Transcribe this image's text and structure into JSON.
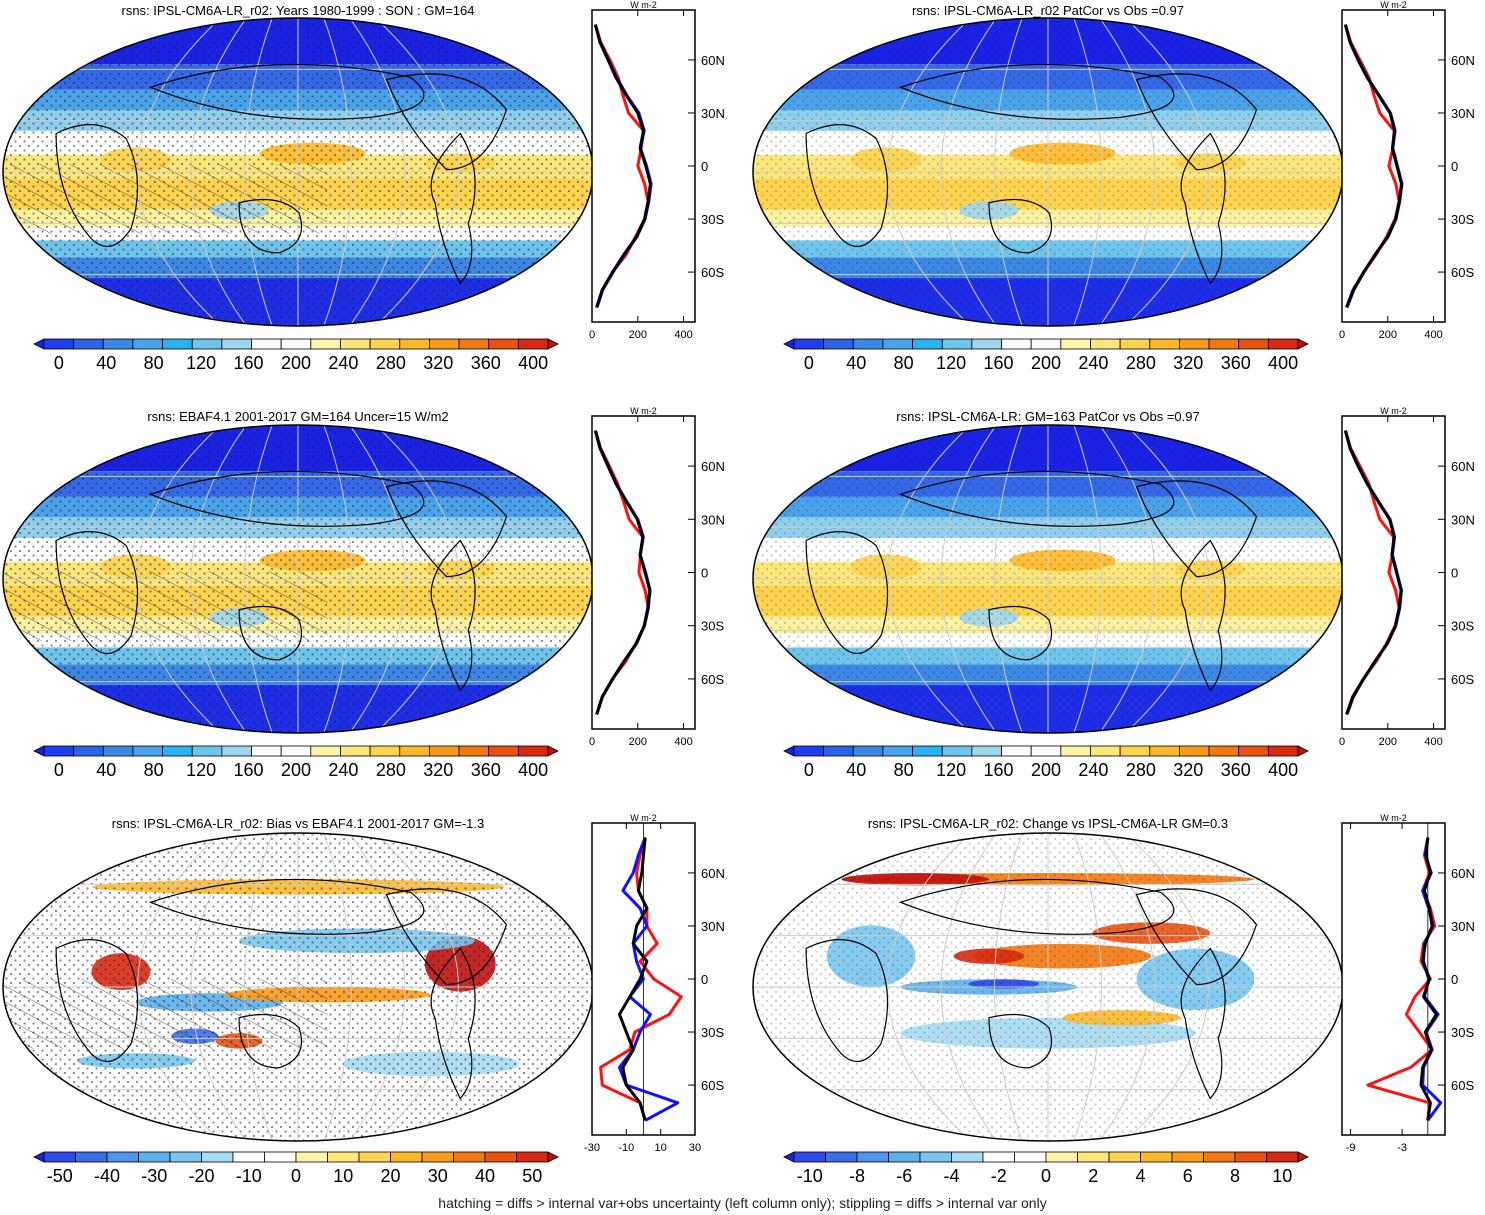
{
  "footer": "hatching = diffs > internal var+obs uncertainty (left column only); stippling = diffs > internal var only",
  "colors": {
    "abs_scale": [
      "#1e1ee8",
      "#1f3ef0",
      "#2c63e6",
      "#3c86e4",
      "#4aa3ea",
      "#2ab3ef",
      "#6fc4ec",
      "#9ed6f0",
      "#ffffff",
      "#ffffff",
      "#fff5a8",
      "#fde77a",
      "#fdd350",
      "#fdb82a",
      "#f99a1a",
      "#f27810",
      "#ea5211",
      "#d82a12",
      "#c01010"
    ],
    "diff_scale": [
      "#2020e0",
      "#2f49ea",
      "#3c6ee6",
      "#4c93ea",
      "#5cb0ec",
      "#79c5ee",
      "#a6dcf4",
      "#ffffff",
      "#ffffff",
      "#fff5a8",
      "#fde77a",
      "#fdd350",
      "#fdb82a",
      "#f99a1a",
      "#f27810",
      "#ea5211",
      "#d82a12",
      "#c01010"
    ],
    "line_model": "#000000",
    "line_obs": "#ff1111",
    "line_ref": "#1010ff"
  },
  "chart_data": [
    {
      "type": "heatmap",
      "title": "rsns: IPSL-CM6A-LR_r02: Years 1980-1999 : SON : GM=164",
      "colorbar_ticks": [
        "0",
        "40",
        "80",
        "120",
        "160",
        "200",
        "240",
        "280",
        "320",
        "360",
        "400"
      ],
      "profile": {
        "unit": "W m-2",
        "x_ticks": [
          "0",
          "200",
          "400"
        ],
        "xlim": [
          0,
          450
        ],
        "lat_ticks": [
          "60N",
          "30N",
          "0",
          "30S",
          "60S"
        ],
        "series": [
          {
            "color": "black",
            "lat": [
              80,
              70,
              60,
              50,
              40,
              30,
              20,
              10,
              0,
              -10,
              -20,
              -30,
              -40,
              -50,
              -60,
              -70,
              -80
            ],
            "values": [
              15,
              35,
              70,
              105,
              150,
              200,
              225,
              210,
              235,
              255,
              245,
              230,
              195,
              140,
              90,
              45,
              20
            ]
          },
          {
            "color": "red",
            "lat": [
              80,
              70,
              60,
              50,
              40,
              30,
              20,
              10,
              0,
              -10,
              -20,
              -30,
              -40,
              -50,
              -60,
              -70,
              -80
            ],
            "values": [
              15,
              38,
              78,
              115,
              135,
              160,
              225,
              215,
              200,
              230,
              245,
              230,
              190,
              150,
              90,
              45,
              20
            ]
          },
          {
            "color": "blue",
            "lat": [
              80,
              70,
              60,
              50,
              40,
              30,
              20,
              10,
              0,
              -10,
              -20,
              -30,
              -40,
              -50,
              -60,
              -70,
              -80
            ],
            "values": [
              15,
              35,
              72,
              108,
              152,
              205,
              228,
              212,
              238,
              258,
              248,
              232,
              196,
              142,
              92,
              47,
              22
            ]
          }
        ]
      }
    },
    {
      "type": "heatmap",
      "title": "rsns: IPSL-CM6A-LR_r02 PatCor vs Obs =0.97",
      "colorbar_ticks": [
        "0",
        "40",
        "80",
        "120",
        "160",
        "200",
        "240",
        "280",
        "320",
        "360",
        "400"
      ],
      "profile": {
        "unit": "W m-2",
        "x_ticks": [
          "0",
          "200",
          "400"
        ],
        "xlim": [
          0,
          450
        ],
        "lat_ticks": [
          "60N",
          "30N",
          "0",
          "30S",
          "60S"
        ],
        "series": [
          {
            "color": "black",
            "lat": [
              80,
              70,
              60,
              50,
              40,
              30,
              20,
              10,
              0,
              -10,
              -20,
              -30,
              -40,
              -50,
              -60,
              -70,
              -80
            ],
            "values": [
              15,
              35,
              70,
              110,
              160,
              210,
              230,
              220,
              240,
              260,
              250,
              235,
              200,
              145,
              95,
              50,
              20
            ]
          },
          {
            "color": "red",
            "lat": [
              80,
              70,
              60,
              50,
              40,
              30,
              20,
              10,
              0,
              -10,
              -20,
              -30,
              -40,
              -50,
              -60,
              -70,
              -80
            ],
            "values": [
              15,
              38,
              78,
              118,
              140,
              165,
              228,
              222,
              205,
              235,
              250,
              232,
              195,
              150,
              95,
              48,
              20
            ]
          },
          {
            "color": "blue",
            "lat": [
              80,
              70,
              60,
              50,
              40,
              30,
              20,
              10,
              0,
              -10,
              -20,
              -30,
              -40,
              -50,
              -60,
              -70,
              -80
            ],
            "values": [
              15,
              36,
              72,
              112,
              162,
              212,
              232,
              222,
              242,
              262,
              252,
              236,
              201,
              146,
              96,
              52,
              22
            ]
          }
        ]
      }
    },
    {
      "type": "heatmap",
      "title": "rsns: EBAF4.1 2001-2017 GM=164 Uncer=15 W/m2",
      "colorbar_ticks": [
        "0",
        "40",
        "80",
        "120",
        "160",
        "200",
        "240",
        "280",
        "320",
        "360",
        "400"
      ],
      "profile": {
        "unit": "W m-2",
        "x_ticks": [
          "0",
          "200",
          "400"
        ],
        "xlim": [
          0,
          450
        ],
        "lat_ticks": [
          "60N",
          "30N",
          "0",
          "30S",
          "60S"
        ],
        "series": [
          {
            "color": "black",
            "lat": [
              80,
              70,
              60,
              50,
              40,
              30,
              20,
              10,
              0,
              -10,
              -20,
              -30,
              -40,
              -50,
              -60,
              -70,
              -80
            ],
            "values": [
              15,
              35,
              70,
              105,
              150,
              198,
              222,
              210,
              232,
              252,
              244,
              228,
              194,
              140,
              90,
              45,
              20
            ]
          },
          {
            "color": "red",
            "lat": [
              80,
              70,
              60,
              50,
              40,
              30,
              20,
              10,
              0,
              -10,
              -20,
              -30,
              -40,
              -50,
              -60,
              -70,
              -80
            ],
            "values": [
              15,
              38,
              76,
              112,
              138,
              162,
              222,
              212,
              205,
              232,
              246,
              230,
              192,
              148,
              90,
              45,
              20
            ]
          },
          {
            "color": "blue",
            "lat": [
              80,
              70,
              60,
              50,
              40,
              30,
              20,
              10,
              0,
              -10,
              -20,
              -30,
              -40,
              -50,
              -60,
              -70,
              -80
            ],
            "values": [
              15,
              36,
              72,
              106,
              152,
              200,
              224,
              211,
              234,
              254,
              246,
              229,
              195,
              141,
              91,
              46,
              21
            ]
          }
        ]
      }
    },
    {
      "type": "heatmap",
      "title": "rsns: IPSL-CM6A-LR: GM=163 PatCor vs Obs =0.97",
      "colorbar_ticks": [
        "0",
        "40",
        "80",
        "120",
        "160",
        "200",
        "240",
        "280",
        "320",
        "360",
        "400"
      ],
      "profile": {
        "unit": "W m-2",
        "x_ticks": [
          "0",
          "200",
          "400"
        ],
        "xlim": [
          0,
          450
        ],
        "lat_ticks": [
          "60N",
          "30N",
          "0",
          "30S",
          "60S"
        ],
        "series": [
          {
            "color": "black",
            "lat": [
              80,
              70,
              60,
              50,
              40,
              30,
              20,
              10,
              0,
              -10,
              -20,
              -30,
              -40,
              -50,
              -60,
              -70,
              -80
            ],
            "values": [
              15,
              35,
              70,
              110,
              158,
              208,
              228,
              218,
              238,
              258,
              250,
              234,
              198,
              144,
              94,
              48,
              20
            ]
          },
          {
            "color": "red",
            "lat": [
              80,
              70,
              60,
              50,
              40,
              30,
              20,
              10,
              0,
              -10,
              -20,
              -30,
              -40,
              -50,
              -60,
              -70,
              -80
            ],
            "values": [
              15,
              38,
              78,
              118,
              140,
              165,
              226,
              220,
              205,
              234,
              250,
              232,
              195,
              150,
              94,
              46,
              20
            ]
          },
          {
            "color": "blue",
            "lat": [
              80,
              70,
              60,
              50,
              40,
              30,
              20,
              10,
              0,
              -10,
              -20,
              -30,
              -40,
              -50,
              -60,
              -70,
              -80
            ],
            "values": [
              15,
              36,
              72,
              112,
              160,
              210,
              230,
              220,
              240,
              260,
              252,
              235,
              199,
              145,
              95,
              50,
              22
            ]
          }
        ]
      }
    },
    {
      "type": "heatmap",
      "title": "rsns: IPSL-CM6A-LR_r02: Bias vs EBAF4.1 2001-2017  GM=-1.3",
      "colorbar_ticks": [
        "-50",
        "-40",
        "-30",
        "-20",
        "-10",
        "0",
        "10",
        "20",
        "30",
        "40",
        "50"
      ],
      "profile": {
        "unit": "W m-2",
        "x_ticks": [
          "-30",
          "-10",
          "10",
          "30"
        ],
        "x_tick_values": [
          -30,
          -10,
          10,
          30
        ],
        "xlim": [
          -30,
          30
        ],
        "lat_ticks": [
          "60N",
          "30N",
          "0",
          "30S",
          "60S"
        ],
        "series": [
          {
            "color": "black",
            "lat": [
              80,
              70,
              60,
              50,
              40,
              30,
              20,
              10,
              0,
              -10,
              -20,
              -30,
              -40,
              -50,
              -60,
              -70,
              -80
            ],
            "values": [
              1,
              0,
              -1,
              -3,
              2,
              -4,
              -6,
              2,
              -2,
              -8,
              -14,
              -10,
              -6,
              -12,
              -10,
              -2,
              1
            ]
          },
          {
            "color": "red",
            "lat": [
              80,
              70,
              60,
              50,
              40,
              30,
              20,
              10,
              0,
              -10,
              -20,
              -30,
              -40,
              -50,
              -60,
              -70,
              -80
            ],
            "values": [
              1,
              -2,
              -4,
              -3,
              2,
              2,
              8,
              -2,
              6,
              22,
              15,
              -5,
              -8,
              -25,
              -24,
              -2,
              1
            ]
          },
          {
            "color": "blue",
            "lat": [
              80,
              70,
              60,
              50,
              40,
              30,
              20,
              10,
              0,
              -10,
              -20,
              -30,
              -40,
              -50,
              -60,
              -70,
              -80
            ],
            "values": [
              1,
              -3,
              -6,
              -12,
              -2,
              2,
              -6,
              -4,
              0,
              -8,
              4,
              -2,
              -6,
              -14,
              -10,
              20,
              1
            ]
          }
        ]
      }
    },
    {
      "type": "heatmap",
      "title": "rsns: IPSL-CM6A-LR_r02: Change vs IPSL-CM6A-LR GM=0.3",
      "colorbar_ticks": [
        "-10",
        "-8",
        "-6",
        "-4",
        "-2",
        "0",
        "2",
        "4",
        "6",
        "8",
        "10"
      ],
      "profile": {
        "unit": "W m-2",
        "x_ticks": [
          "-9",
          "-3"
        ],
        "x_tick_values": [
          -9,
          -3
        ],
        "xlim": [
          -10,
          2
        ],
        "lat_ticks": [
          "60N",
          "30N",
          "0",
          "30S",
          "60S"
        ],
        "series": [
          {
            "color": "black",
            "lat": [
              80,
              70,
              60,
              50,
              40,
              30,
              20,
              10,
              0,
              -10,
              -20,
              -30,
              -40,
              -50,
              -60,
              -70,
              -80
            ],
            "values": [
              0,
              -0.2,
              0.3,
              -0.4,
              0.2,
              0.5,
              -0.3,
              -0.6,
              0.2,
              -0.5,
              1.0,
              -0.3,
              0.4,
              -0.6,
              -0.8,
              0.3,
              0
            ]
          },
          {
            "color": "red",
            "lat": [
              80,
              70,
              60,
              50,
              40,
              30,
              20,
              10,
              0,
              -10,
              -20,
              -30,
              -40,
              -50,
              -60,
              -70,
              -80
            ],
            "values": [
              0,
              -0.4,
              0.2,
              -0.6,
              0.3,
              0.8,
              -0.5,
              -0.8,
              0.3,
              -1.5,
              -2.5,
              -1.0,
              0.5,
              -2.0,
              -7.0,
              0.2,
              0
            ]
          },
          {
            "color": "blue",
            "lat": [
              80,
              70,
              60,
              50,
              40,
              30,
              20,
              10,
              0,
              -10,
              -20,
              -30,
              -40,
              -50,
              -60,
              -70,
              -80
            ],
            "values": [
              0,
              -0.3,
              0.4,
              -0.6,
              0.1,
              0.6,
              -0.4,
              -0.5,
              0.1,
              -0.4,
              1.2,
              -0.2,
              0.5,
              -0.5,
              -0.6,
              1.5,
              0
            ]
          }
        ]
      }
    }
  ]
}
